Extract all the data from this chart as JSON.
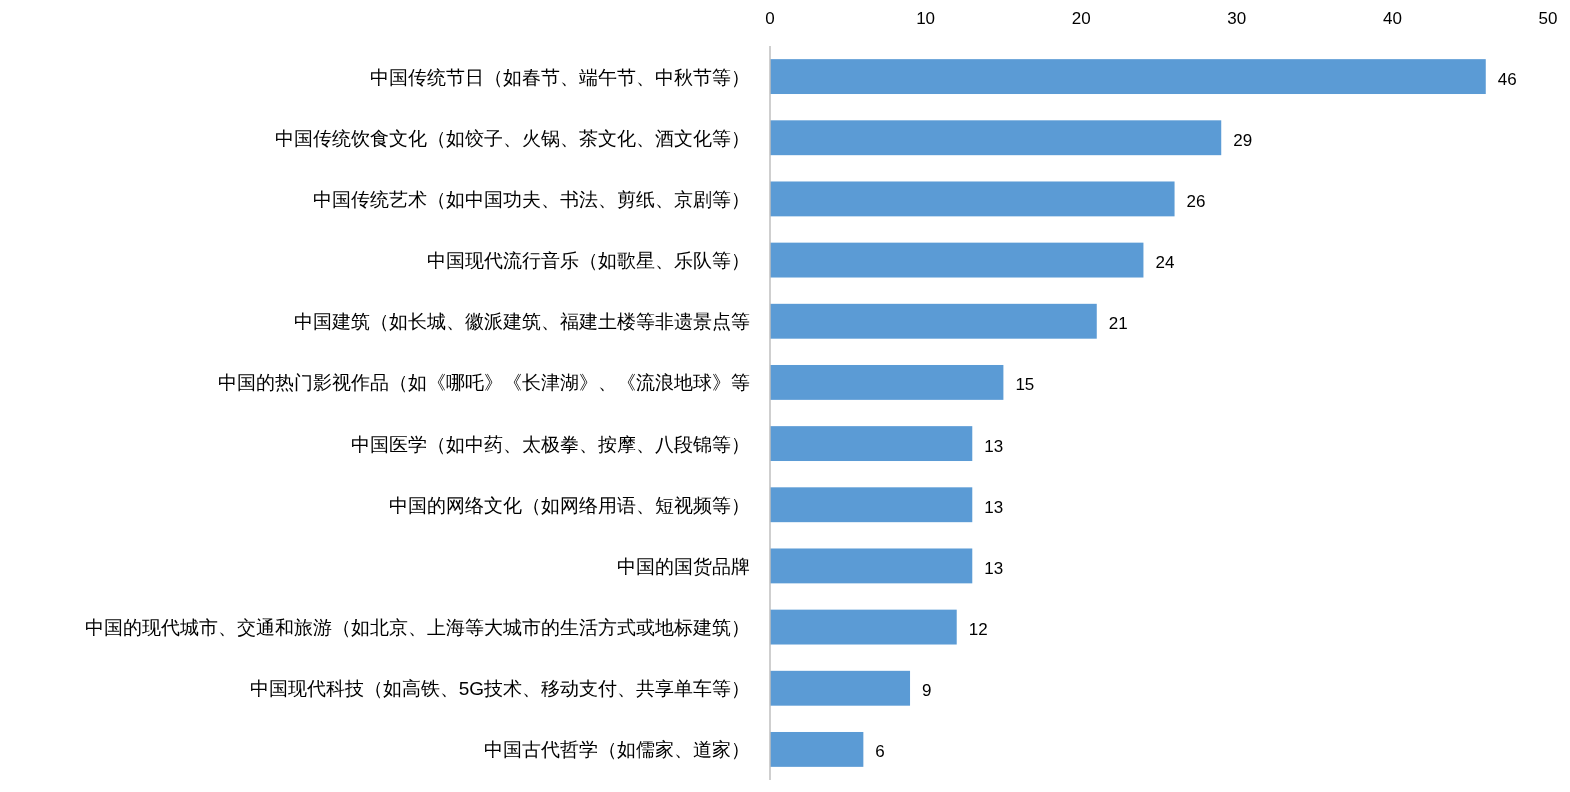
{
  "chart_data": {
    "type": "bar",
    "orientation": "horizontal",
    "categories": [
      "中国传统节日（如春节、端午节、中秋节等）",
      "中国传统饮食文化（如饺子、火锅、茶文化、酒文化等）",
      "中国传统艺术（如中国功夫、书法、剪纸、京剧等）",
      "中国现代流行音乐（如歌星、乐队等）",
      "中国建筑（如长城、徽派建筑、福建土楼等非遗景点等",
      "中国的热门影视作品（如《哪吒》《长津湖》、《流浪地球》等",
      "中国医学（如中药、太极拳、按摩、八段锦等）",
      "中国的网络文化（如网络用语、短视频等）",
      "中国的国货品牌",
      "中国的现代城市、交通和旅游（如北京、上海等大城市的生活方式或地标建筑）",
      "中国现代科技（如高铁、5G技术、移动支付、共享单车等）",
      "中国古代哲学（如儒家、道家）"
    ],
    "values": [
      46,
      29,
      26,
      24,
      21,
      15,
      13,
      13,
      13,
      12,
      9,
      6
    ],
    "color": "#5b9bd5",
    "xlim": [
      0,
      50
    ],
    "xticks": [
      0,
      10,
      20,
      30,
      40,
      50
    ],
    "data_labels": true,
    "grid": false
  }
}
